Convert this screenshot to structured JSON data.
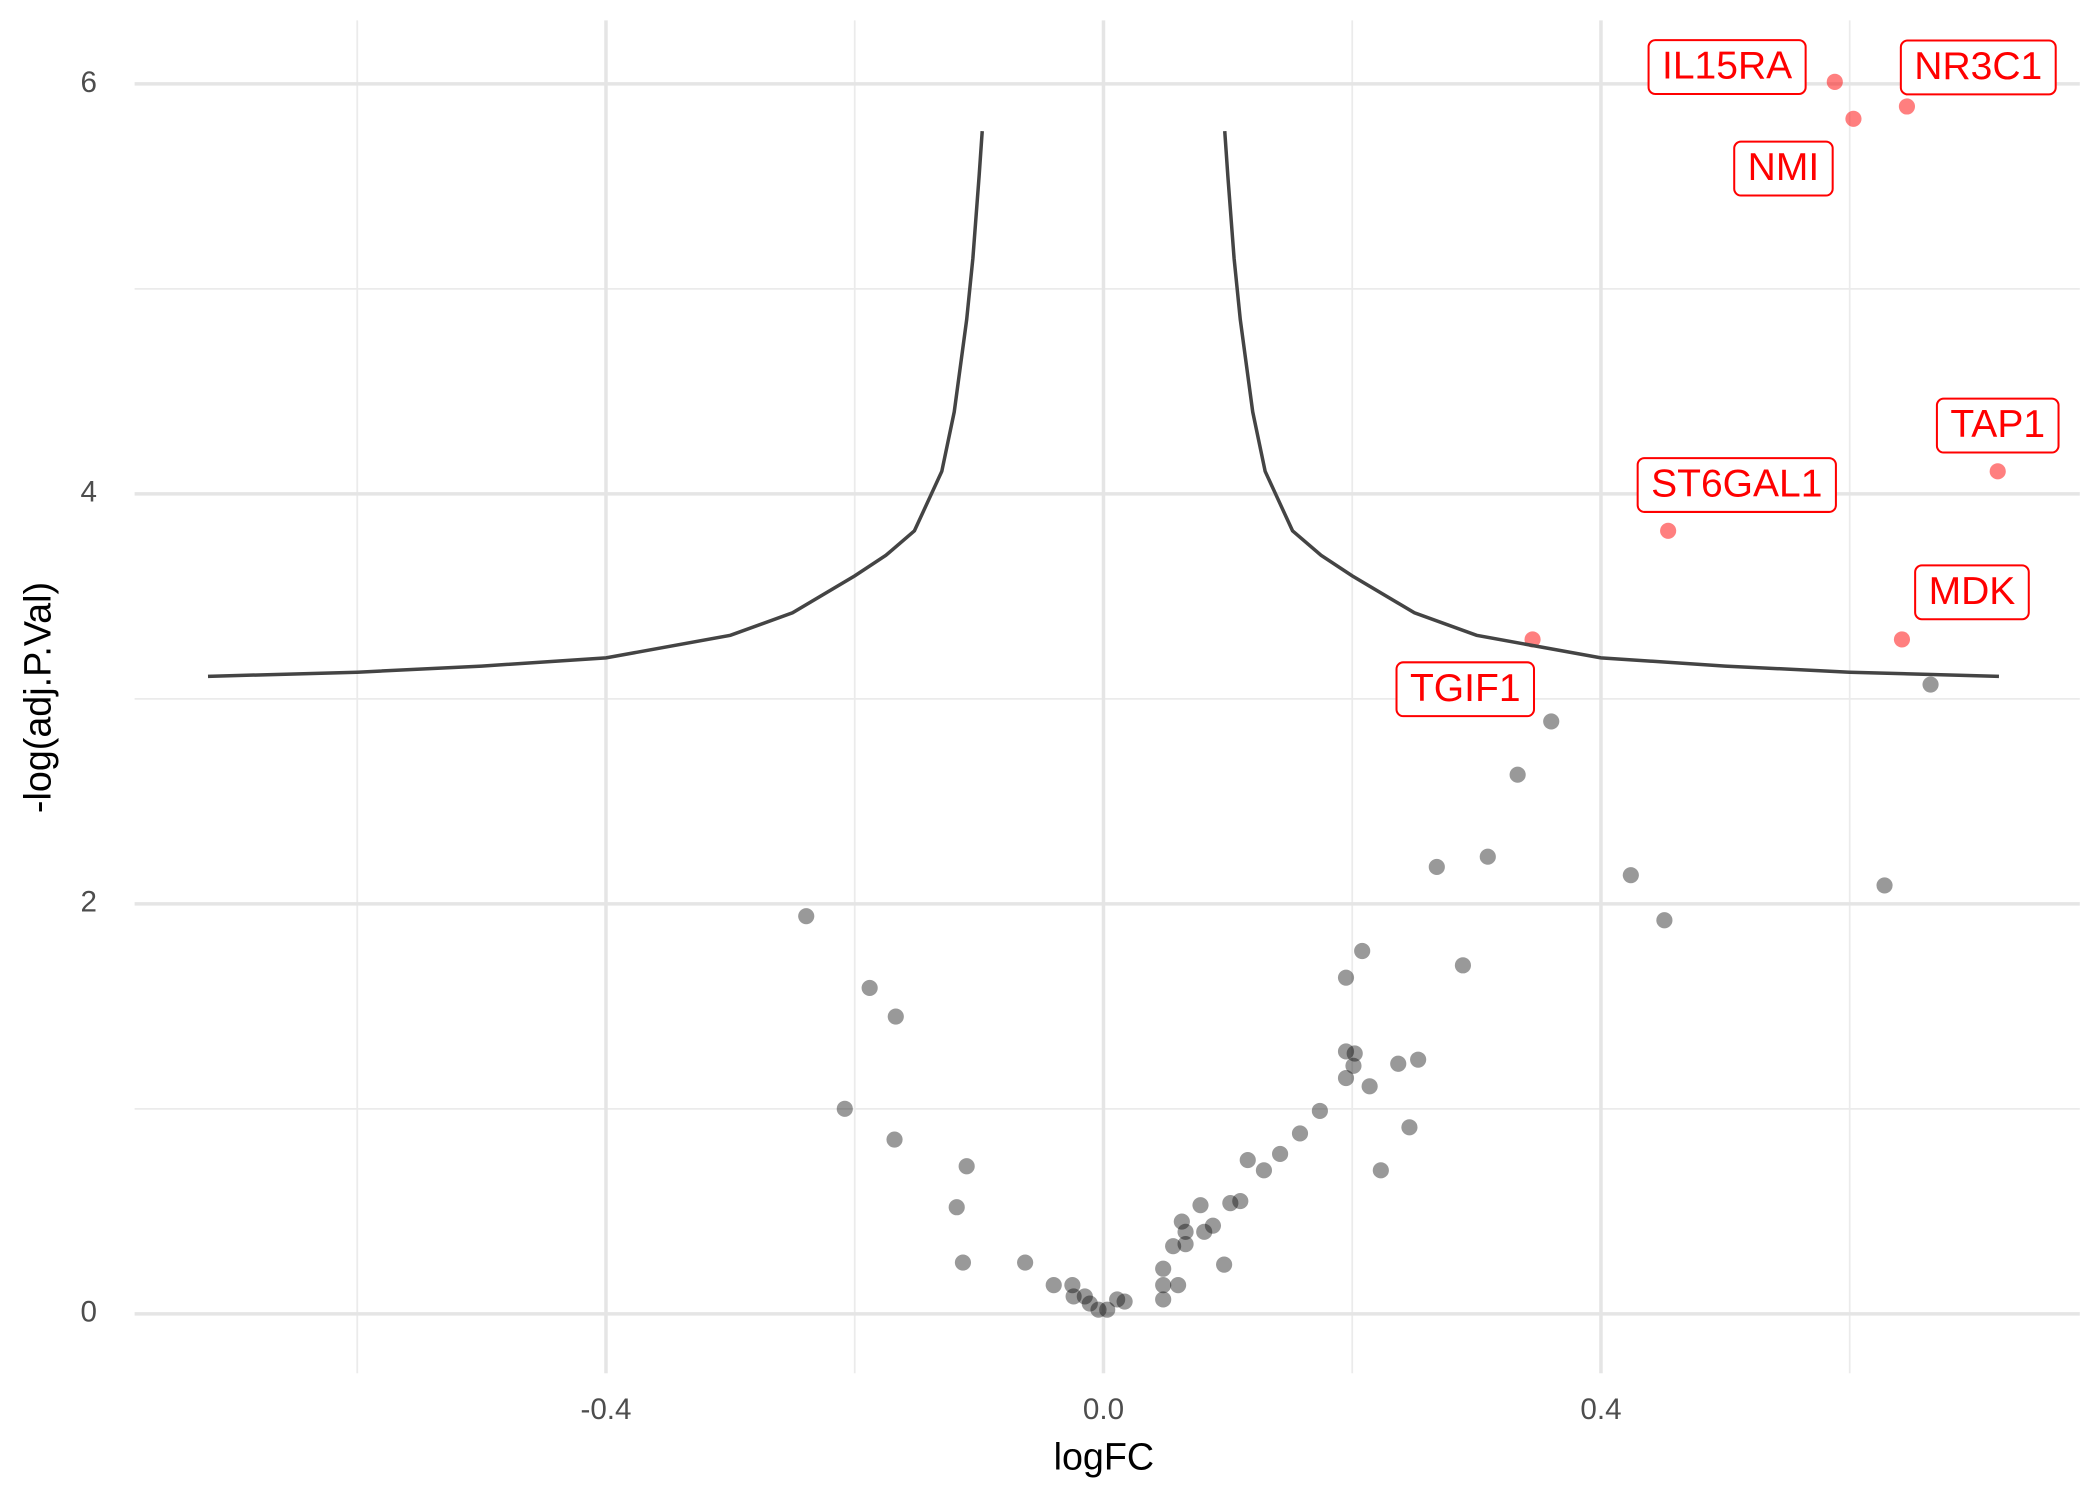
{
  "chart_data": {
    "type": "scatter",
    "x_label": "logFC",
    "y_label": "-log(adj.P.Val)",
    "xlim": [
      -0.779,
      0.785
    ],
    "ylim": [
      -0.29,
      6.31
    ],
    "xticks": [
      {
        "value": -0.4,
        "label": "-0.4"
      },
      {
        "value": 0,
        "label": "0.0"
      },
      {
        "value": 0.4,
        "label": "0.4"
      }
    ],
    "yticks": [
      0,
      2,
      4,
      6
    ],
    "x_minor_grid": [
      -0.6,
      -0.2,
      0.2,
      0.6
    ],
    "y_minor_grid": [
      1,
      3,
      5
    ],
    "grid": true,
    "series": [
      {
        "type": "scatter",
        "color": "#000000",
        "x": [
          -0.239,
          -0.188,
          -0.167,
          -0.208,
          -0.168,
          -0.11,
          -0.118,
          -0.113,
          -0.063,
          -0.04,
          -0.025,
          -0.024,
          -0.015,
          -0.011,
          -0.004,
          0.003,
          0.011,
          0.017,
          0.048,
          0.048,
          0.048,
          0.06,
          0.056,
          0.063,
          0.066,
          0.066,
          0.078,
          0.081,
          0.088,
          0.097,
          0.102,
          0.11,
          0.116,
          0.129,
          0.142,
          0.158,
          0.174,
          0.195,
          0.195,
          0.195,
          0.202,
          0.201,
          0.208,
          0.214,
          0.223,
          0.237,
          0.246,
          0.253,
          0.268,
          0.289,
          0.309,
          0.333,
          0.36,
          0.424,
          0.451,
          0.628,
          0.665
        ],
        "values": [
          1.94,
          1.59,
          1.45,
          1.0,
          0.85,
          0.72,
          0.52,
          0.25,
          0.25,
          0.14,
          0.14,
          0.085,
          0.085,
          0.05,
          0.02,
          0.02,
          0.07,
          0.06,
          0.22,
          0.14,
          0.07,
          0.14,
          0.33,
          0.45,
          0.4,
          0.34,
          0.53,
          0.4,
          0.43,
          0.24,
          0.54,
          0.55,
          0.75,
          0.7,
          0.78,
          0.88,
          0.99,
          1.64,
          1.28,
          1.15,
          1.27,
          1.21,
          1.77,
          1.11,
          0.7,
          1.22,
          0.91,
          1.24,
          2.18,
          1.7,
          2.23,
          2.63,
          2.89,
          2.14,
          1.92,
          2.09,
          3.07
        ]
      },
      {
        "type": "scatter",
        "color": "#ff0000",
        "x": [
          0.588,
          0.603,
          0.646,
          0.719,
          0.454,
          0.642,
          0.345
        ],
        "values": [
          6.01,
          5.83,
          5.89,
          4.11,
          3.82,
          3.29,
          3.29
        ],
        "labels": [
          "IL15RA",
          "NMI",
          "NR3C1",
          "TAP1",
          "ST6GAL1",
          "MDK",
          "TGIF1"
        ]
      },
      {
        "type": "line",
        "color": "#444444",
        "x": [
          -0.72,
          -0.6,
          -0.5,
          -0.4,
          -0.3,
          -0.25,
          -0.2,
          -0.175,
          -0.152,
          -0.13,
          -0.12,
          -0.11,
          -0.105,
          -0.1,
          -0.0975,
          null,
          0.0975,
          0.1,
          0.105,
          0.11,
          0.12,
          0.13,
          0.152,
          0.175,
          0.2,
          0.25,
          0.3,
          0.4,
          0.5,
          0.6,
          0.72
        ],
        "values": [
          3.11,
          3.13,
          3.16,
          3.2,
          3.31,
          3.42,
          3.6,
          3.7,
          3.82,
          4.11,
          4.4,
          4.85,
          5.15,
          5.55,
          5.77,
          null,
          5.77,
          5.55,
          5.15,
          4.85,
          4.4,
          4.11,
          3.82,
          3.7,
          3.6,
          3.42,
          3.31,
          3.2,
          3.16,
          3.13,
          3.11
        ]
      }
    ]
  }
}
